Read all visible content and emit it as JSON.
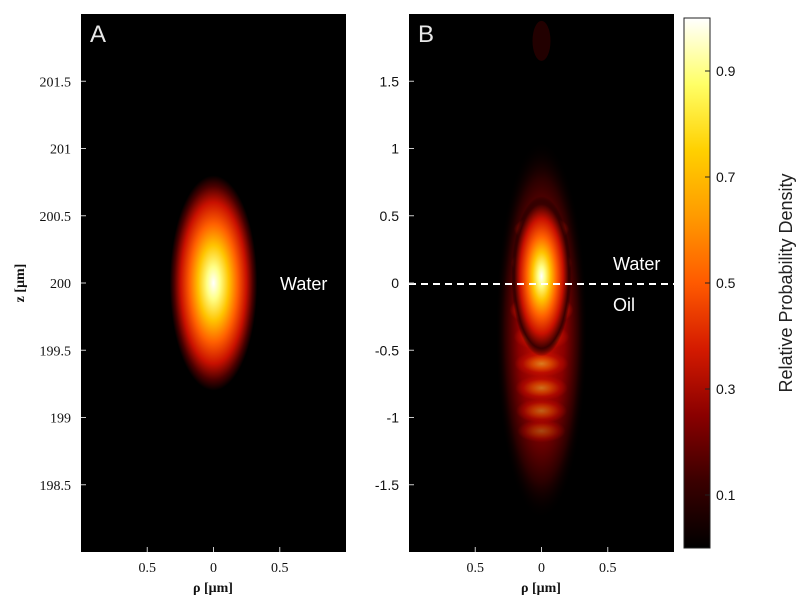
{
  "chart_data": [
    {
      "type": "heatmap",
      "panel_label": "A",
      "medium_label": "Water",
      "xlabel": "ρ [μm]",
      "ylabel": "z [μm]",
      "x_ticks": [
        {
          "value": -0.5,
          "label": "0.5"
        },
        {
          "value": 0,
          "label": "0"
        },
        {
          "value": 0.5,
          "label": "0.5"
        }
      ],
      "y_ticks": [
        {
          "value": 201.5,
          "label": "201.5"
        },
        {
          "value": 201,
          "label": "201"
        },
        {
          "value": 200.5,
          "label": "200.5"
        },
        {
          "value": 200,
          "label": "200"
        },
        {
          "value": 199.5,
          "label": "199.5"
        },
        {
          "value": 199,
          "label": "199"
        },
        {
          "value": 198.5,
          "label": "198.5"
        }
      ],
      "xlim": [
        -1,
        1
      ],
      "ylim": [
        198,
        202
      ],
      "peak": {
        "rho": 0,
        "z": 200,
        "value": 1.0
      },
      "spot_extent": {
        "rho_halfwidth": 0.15,
        "z_halfwidth": 0.4
      }
    },
    {
      "type": "heatmap",
      "panel_label": "B",
      "interface_label_top": "Water",
      "interface_label_bottom": "Oil",
      "interface_z": 0,
      "xlabel": "ρ [μm]",
      "x_ticks": [
        {
          "value": -0.5,
          "label": "0.5"
        },
        {
          "value": 0,
          "label": "0"
        },
        {
          "value": 0.5,
          "label": "0.5"
        }
      ],
      "y_ticks": [
        {
          "value": 1.5,
          "label": "1.5"
        },
        {
          "value": 1,
          "label": "1"
        },
        {
          "value": 0.5,
          "label": "0.5"
        },
        {
          "value": 0,
          "label": "0"
        },
        {
          "value": -0.5,
          "label": "-0.5"
        },
        {
          "value": -1,
          "label": "-1"
        },
        {
          "value": -1.5,
          "label": "-1.5"
        }
      ],
      "xlim": [
        -1,
        1
      ],
      "ylim": [
        -2,
        2
      ],
      "peak": {
        "rho": 0,
        "z": 0,
        "value": 1.0
      },
      "lobes_z": [
        0.4,
        0.15,
        -0.2,
        -0.4,
        -0.6,
        -0.78,
        -0.95,
        -1.1
      ],
      "lobes_value": [
        0.55,
        0.75,
        0.85,
        0.55,
        0.5,
        0.45,
        0.4,
        0.3
      ]
    }
  ],
  "colorbar": {
    "label": "Relative Probability Density",
    "range": [
      0,
      1
    ],
    "ticks": [
      {
        "value": 0.9,
        "label": "0.9"
      },
      {
        "value": 0.7,
        "label": "0.7"
      },
      {
        "value": 0.5,
        "label": "0.5"
      },
      {
        "value": 0.3,
        "label": "0.3"
      },
      {
        "value": 0.1,
        "label": "0.1"
      }
    ],
    "colormap": [
      "#000000",
      "#3a0000",
      "#8a0000",
      "#d41a00",
      "#ff5a00",
      "#ff9a00",
      "#ffd000",
      "#ffff66",
      "#ffffff"
    ]
  }
}
